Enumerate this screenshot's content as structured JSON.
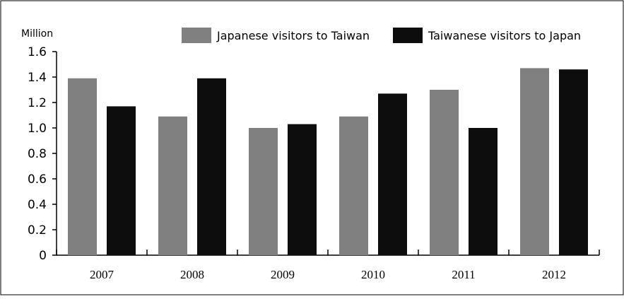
{
  "chart_data": {
    "type": "bar",
    "ylabel": "Million",
    "ylim": [
      0,
      1.6
    ],
    "yticks": [
      "0",
      "0.2",
      "0.4",
      "0.6",
      "0.8",
      "1.0",
      "1.2",
      "1.4",
      "1.6"
    ],
    "categories": [
      "2007",
      "2008",
      "2009",
      "2010",
      "2011",
      "2012"
    ],
    "series": [
      {
        "name": "Japanese visitors to Taiwan",
        "color": "#808080",
        "values": [
          1.39,
          1.09,
          1.0,
          1.09,
          1.3,
          1.47
        ]
      },
      {
        "name": "Taiwanese visitors to Japan",
        "color": "#0d0d0d",
        "values": [
          1.17,
          1.39,
          1.03,
          1.27,
          1.0,
          1.46
        ]
      }
    ],
    "legend": "top-right",
    "grid": false
  }
}
